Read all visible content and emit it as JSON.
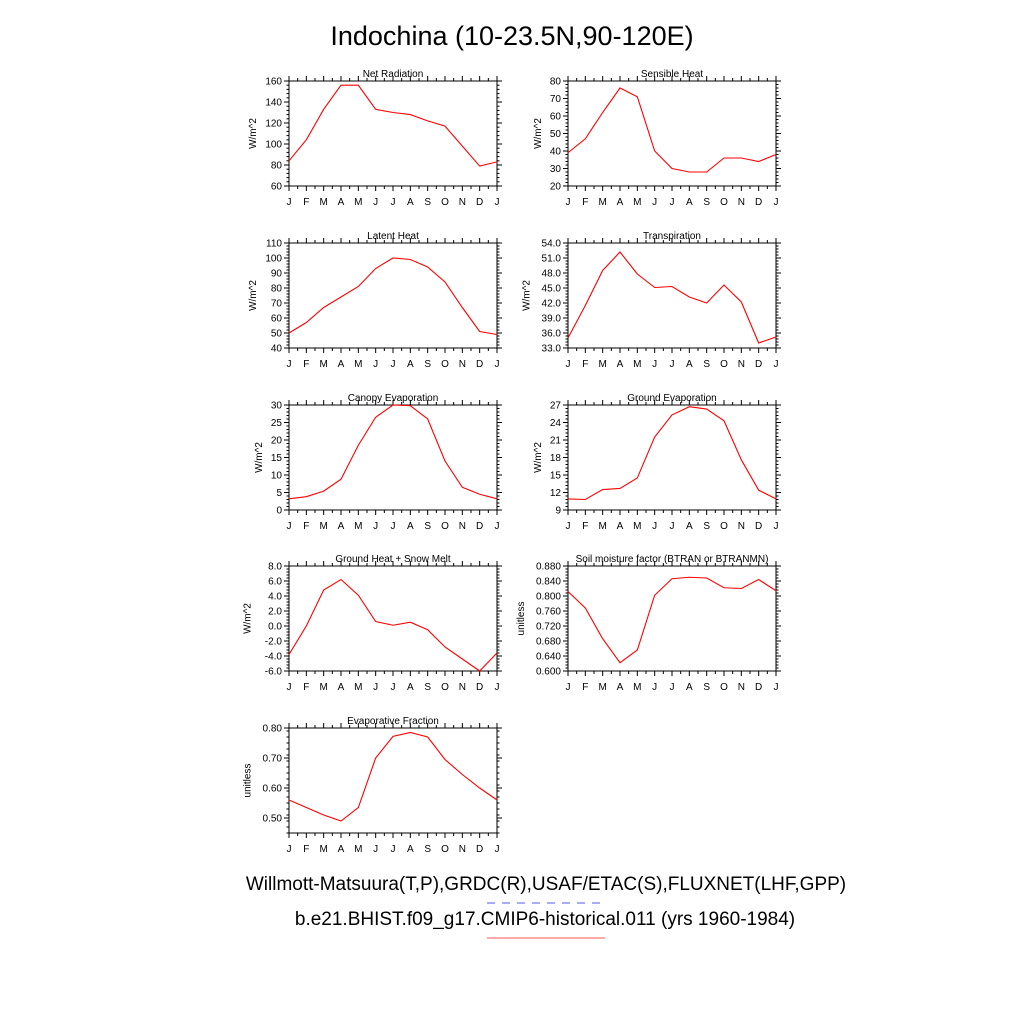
{
  "figure": {
    "title": "Indochina (10-23.5N,90-120E)",
    "legend": [
      {
        "label": "Willmott-Matsuura(T,P),GRDC(R),USAF/ETAC(S),FLUXNET(LHF,GPP)",
        "color": "#5555ff",
        "dash": "dashed"
      },
      {
        "label": "b.e21.BHIST.f09_g17.CMIP6-historical.011 (yrs 1960-1984)",
        "color": "#ff5555",
        "dash": "solid"
      }
    ],
    "line_color": "#ff0000"
  },
  "chart_data": [
    {
      "type": "line",
      "title": "Net Radiation",
      "ylabel": "W/m^2",
      "categories": [
        "J",
        "F",
        "M",
        "A",
        "M",
        "J",
        "J",
        "A",
        "S",
        "O",
        "N",
        "D",
        "J"
      ],
      "ylim": [
        60,
        160
      ],
      "yticks": [
        60,
        80,
        100,
        120,
        140,
        160
      ],
      "ytick_labels": [
        "60",
        "80",
        "100",
        "120",
        "140",
        "160"
      ],
      "series": [
        {
          "values": [
            84,
            104,
            133,
            156,
            156,
            133,
            130,
            128,
            122,
            117,
            98,
            79,
            83
          ]
        }
      ]
    },
    {
      "type": "line",
      "title": "Sensible Heat",
      "ylabel": "W/m^2",
      "categories": [
        "J",
        "F",
        "M",
        "A",
        "M",
        "J",
        "J",
        "A",
        "S",
        "O",
        "N",
        "D",
        "J"
      ],
      "ylim": [
        20,
        80
      ],
      "yticks": [
        20,
        30,
        40,
        50,
        60,
        70,
        80
      ],
      "ytick_labels": [
        "20",
        "30",
        "40",
        "50",
        "60",
        "70",
        "80"
      ],
      "series": [
        {
          "values": [
            39,
            47,
            62,
            76,
            71,
            40,
            30,
            28,
            28,
            36,
            36,
            34,
            38
          ]
        }
      ]
    },
    {
      "type": "line",
      "title": "Latent Heat",
      "ylabel": "W/m^2",
      "categories": [
        "J",
        "F",
        "M",
        "A",
        "M",
        "J",
        "J",
        "A",
        "S",
        "O",
        "N",
        "D",
        "J"
      ],
      "ylim": [
        40,
        110
      ],
      "yticks": [
        40,
        50,
        60,
        70,
        80,
        90,
        100,
        110
      ],
      "ytick_labels": [
        "40",
        "50",
        "60",
        "70",
        "80",
        "90",
        "100",
        "110"
      ],
      "series": [
        {
          "values": [
            50,
            57,
            67,
            74,
            81,
            93,
            100,
            99,
            94,
            84,
            67,
            51,
            49
          ]
        }
      ]
    },
    {
      "type": "line",
      "title": "Transpiration",
      "ylabel": "W/m^2",
      "categories": [
        "J",
        "F",
        "M",
        "A",
        "M",
        "J",
        "J",
        "A",
        "S",
        "O",
        "N",
        "D",
        "J"
      ],
      "ylim": [
        33,
        54
      ],
      "yticks": [
        33,
        36,
        39,
        42,
        45,
        48,
        51,
        54
      ],
      "ytick_labels": [
        "33.0",
        "36.0",
        "39.0",
        "42.0",
        "45.0",
        "48.0",
        "51.0",
        "54.0"
      ],
      "series": [
        {
          "values": [
            35,
            41.5,
            48.5,
            52.2,
            47.8,
            45.1,
            45.3,
            43.2,
            42,
            45.6,
            42.2,
            34,
            35.2
          ]
        }
      ]
    },
    {
      "type": "line",
      "title": "Canopy Evaporation",
      "ylabel": "W/m^2",
      "categories": [
        "J",
        "F",
        "M",
        "A",
        "M",
        "J",
        "J",
        "A",
        "S",
        "O",
        "N",
        "D",
        "J"
      ],
      "ylim": [
        0,
        30
      ],
      "yticks": [
        0,
        5,
        10,
        15,
        20,
        25,
        30
      ],
      "ytick_labels": [
        "0",
        "5",
        "10",
        "15",
        "20",
        "25",
        "30"
      ],
      "series": [
        {
          "values": [
            3.2,
            3.8,
            5.4,
            8.8,
            18.5,
            26.5,
            30,
            29.8,
            26,
            14,
            6.5,
            4.5,
            3.2
          ]
        }
      ]
    },
    {
      "type": "line",
      "title": "Ground Evaporation",
      "ylabel": "W/m^2",
      "categories": [
        "J",
        "F",
        "M",
        "A",
        "M",
        "J",
        "J",
        "A",
        "S",
        "O",
        "N",
        "D",
        "J"
      ],
      "ylim": [
        9,
        27
      ],
      "yticks": [
        9,
        12,
        15,
        18,
        21,
        24,
        27
      ],
      "ytick_labels": [
        "9",
        "12",
        "15",
        "18",
        "21",
        "24",
        "27"
      ],
      "series": [
        {
          "values": [
            10.9,
            10.8,
            12.5,
            12.7,
            14.5,
            21.5,
            25.3,
            26.7,
            26.3,
            24.3,
            17.6,
            12.4,
            10.9
          ]
        }
      ]
    },
    {
      "type": "line",
      "title": "Ground Heat + Snow Melt",
      "ylabel": "W/m^2",
      "categories": [
        "J",
        "F",
        "M",
        "A",
        "M",
        "J",
        "J",
        "A",
        "S",
        "O",
        "N",
        "D",
        "J"
      ],
      "ylim": [
        -6,
        8
      ],
      "yticks": [
        -6,
        -4,
        -2,
        0,
        2,
        4,
        6,
        8
      ],
      "ytick_labels": [
        "-6.0",
        "-4.0",
        "-2.0",
        "0.0",
        "2.0",
        "4.0",
        "6.0",
        "8.0"
      ],
      "series": [
        {
          "values": [
            -3.8,
            0,
            4.8,
            6.2,
            4.1,
            0.6,
            0.1,
            0.5,
            -0.5,
            -2.8,
            -4.4,
            -6,
            -3.6
          ]
        }
      ]
    },
    {
      "type": "line",
      "title": "Soil moisture factor (BTRAN or BTRANMN)",
      "ylabel": "unitless",
      "categories": [
        "J",
        "F",
        "M",
        "A",
        "M",
        "J",
        "J",
        "A",
        "S",
        "O",
        "N",
        "D",
        "J"
      ],
      "ylim": [
        0.6,
        0.88
      ],
      "yticks": [
        0.6,
        0.64,
        0.68,
        0.72,
        0.76,
        0.8,
        0.84,
        0.88
      ],
      "ytick_labels": [
        "0.600",
        "0.640",
        "0.680",
        "0.720",
        "0.760",
        "0.800",
        "0.840",
        "0.880"
      ],
      "series": [
        {
          "values": [
            0.812,
            0.768,
            0.686,
            0.622,
            0.656,
            0.802,
            0.846,
            0.85,
            0.848,
            0.822,
            0.82,
            0.844,
            0.814
          ]
        }
      ]
    },
    {
      "type": "line",
      "title": "Evaporative Fraction",
      "ylabel": "unitless",
      "categories": [
        "J",
        "F",
        "M",
        "A",
        "M",
        "J",
        "J",
        "A",
        "S",
        "O",
        "N",
        "D",
        "J"
      ],
      "ylim": [
        0.45,
        0.8
      ],
      "yticks": [
        0.5,
        0.6,
        0.7,
        0.8
      ],
      "ytick_labels": [
        "0.50",
        "0.60",
        "0.70",
        "0.80"
      ],
      "series": [
        {
          "values": [
            0.56,
            0.535,
            0.51,
            0.49,
            0.535,
            0.7,
            0.772,
            0.785,
            0.77,
            0.695,
            0.645,
            0.6,
            0.56
          ]
        }
      ]
    }
  ]
}
